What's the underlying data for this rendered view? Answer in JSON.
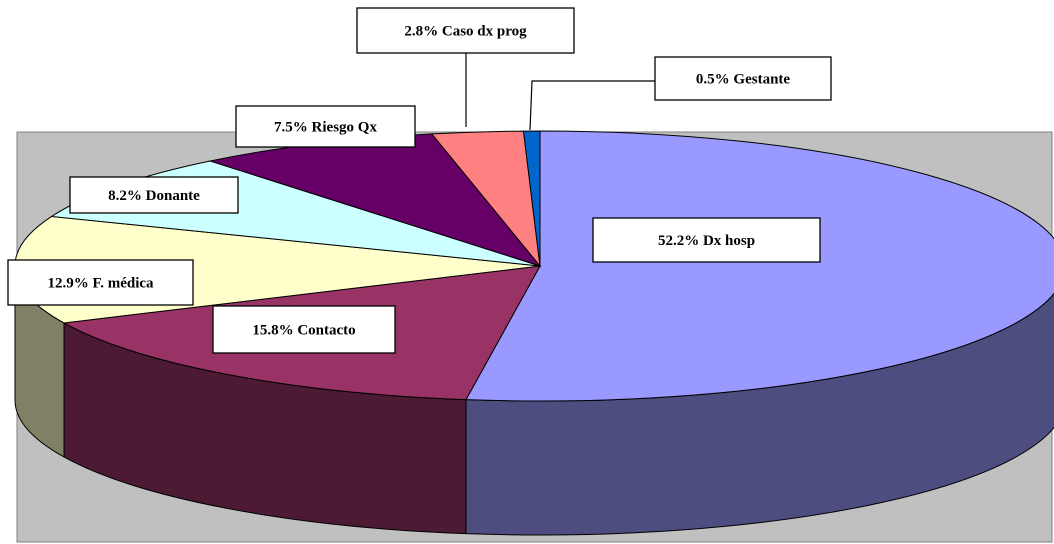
{
  "chart_data": {
    "type": "pie",
    "style": "3d",
    "slices": [
      {
        "label": "Dx hosp",
        "value": 52.2,
        "text": "52.2% Dx hosp",
        "color": "#9999ff",
        "side_color": "#4d4d80"
      },
      {
        "label": "Contacto",
        "value": 15.8,
        "text": "15.8% Contacto",
        "color": "#993366",
        "side_color": "#4d1a33"
      },
      {
        "label": "F. médica",
        "value": 12.9,
        "text": "12.9% F. médica",
        "color": "#ffffcc",
        "side_color": "#808066"
      },
      {
        "label": "Donante",
        "value": 8.2,
        "text": "8.2% Donante",
        "color": "#ccffff",
        "side_color": "#668080"
      },
      {
        "label": "Riesgo Qx",
        "value": 7.5,
        "text": "7.5% Riesgo Qx",
        "color": "#660066",
        "side_color": "#330033"
      },
      {
        "label": "Caso dx  prog",
        "value": 2.8,
        "text": "2.8% Caso dx  prog",
        "color": "#ff8080",
        "side_color": "#804040"
      },
      {
        "label": "Gestante",
        "value": 0.5,
        "text": "0.5% Gestante",
        "color": "#0066cc",
        "side_color": "#003366"
      }
    ],
    "plot_area_color": "#c0c0c0",
    "legend": "none"
  }
}
